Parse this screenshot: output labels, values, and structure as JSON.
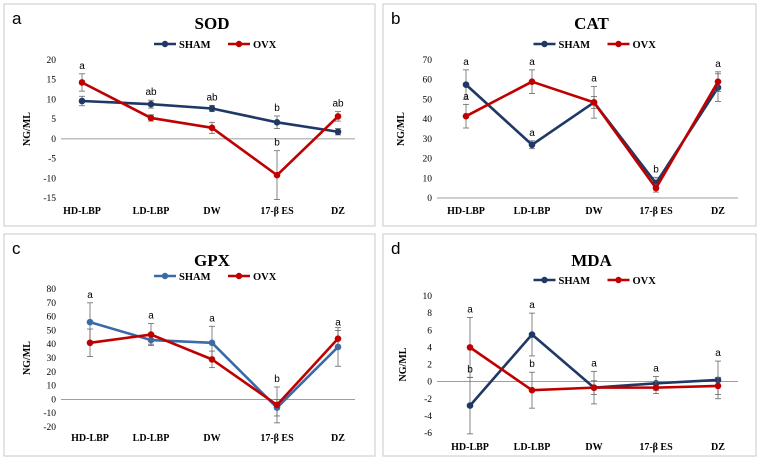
{
  "colors": {
    "series_a": "#1f3864",
    "series_b": "#c00000",
    "series_a_gpx": "#3a6aa8",
    "frame": "#c8c8c8",
    "axis": "#7f7f7f"
  },
  "chart_data": [
    {
      "type": "line",
      "panel": "a",
      "title": "SOD",
      "ylabel": "NG/ML",
      "xlabel": "",
      "categories": [
        "HD-LBP",
        "LD-LBP",
        "DW",
        "17-β ES",
        "DZ"
      ],
      "ylim": [
        -15,
        20
      ],
      "yticks": [
        -15,
        -10,
        -5,
        0,
        5,
        10,
        15,
        20
      ],
      "legend": "top-center",
      "series": [
        {
          "name": "SHAM",
          "values": [
            9.6,
            8.8,
            7.7,
            4.2,
            1.8
          ],
          "errors": [
            1.2,
            1.0,
            0.8,
            1.6,
            0.8
          ]
        },
        {
          "name": "OVX",
          "values": [
            14.3,
            5.3,
            2.8,
            -9.2,
            5.7
          ],
          "errors": [
            2.2,
            0.8,
            1.4,
            6.2,
            1.2
          ]
        }
      ],
      "annotations": [
        {
          "category": "HD-LBP",
          "label": "a",
          "series": "OVX"
        },
        {
          "category": "LD-LBP",
          "label": "ab",
          "series": "SHAM"
        },
        {
          "category": "DW",
          "label": "ab",
          "series": "SHAM"
        },
        {
          "category": "17-β ES",
          "label": "b",
          "series": "SHAM"
        },
        {
          "category": "17-β ES",
          "label": "b",
          "series": "OVX"
        },
        {
          "category": "DZ",
          "label": "ab",
          "series": "OVX"
        }
      ]
    },
    {
      "type": "line",
      "panel": "b",
      "title": "CAT",
      "ylabel": "NG/ML",
      "xlabel": "",
      "categories": [
        "HD-LBP",
        "LD-LBP",
        "DW",
        "17-β ES",
        "DZ"
      ],
      "ylim": [
        0,
        70
      ],
      "yticks": [
        0,
        10,
        20,
        30,
        40,
        50,
        60,
        70
      ],
      "legend": "top-center",
      "series": [
        {
          "name": "SHAM",
          "values": [
            57.5,
            27,
            48.5,
            7.5,
            56
          ],
          "errors": [
            7.5,
            2,
            8,
            3,
            7
          ]
        },
        {
          "name": "OVX",
          "values": [
            41.5,
            59,
            48.5,
            5,
            59
          ],
          "errors": [
            6,
            6,
            3,
            2,
            5
          ]
        }
      ],
      "annotations": [
        {
          "category": "HD-LBP",
          "label": "a",
          "series": "SHAM"
        },
        {
          "category": "HD-LBP",
          "label": "a",
          "series": "OVX"
        },
        {
          "category": "LD-LBP",
          "label": "a",
          "series": "OVX"
        },
        {
          "category": "LD-LBP",
          "label": "a",
          "series": "SHAM"
        },
        {
          "category": "DW",
          "label": "a",
          "series": "SHAM"
        },
        {
          "category": "17-β ES",
          "label": "b",
          "series": "SHAM"
        },
        {
          "category": "DZ",
          "label": "a",
          "series": "OVX"
        }
      ]
    },
    {
      "type": "line",
      "panel": "c",
      "title": "GPX",
      "ylabel": "NG/ML",
      "xlabel": "",
      "categories": [
        "HD-LBP",
        "LD-LBP",
        "DW",
        "17-β ES",
        "DZ"
      ],
      "ylim": [
        -20,
        80
      ],
      "yticks": [
        -20,
        -10,
        0,
        10,
        20,
        30,
        40,
        50,
        60,
        70,
        80
      ],
      "legend": "top-center",
      "series": [
        {
          "name": "SHAM",
          "values": [
            56,
            43,
            41,
            -6,
            38
          ],
          "errors": [
            14,
            3,
            12,
            6,
            14
          ]
        },
        {
          "name": "OVX",
          "values": [
            41,
            47,
            29,
            -4,
            44
          ],
          "errors": [
            10,
            8,
            6,
            13,
            6
          ]
        }
      ],
      "annotations": [
        {
          "category": "HD-LBP",
          "label": "a",
          "series": "SHAM"
        },
        {
          "category": "LD-LBP",
          "label": "a",
          "series": "OVX"
        },
        {
          "category": "DW",
          "label": "a",
          "series": "SHAM"
        },
        {
          "category": "17-β ES",
          "label": "b",
          "series": "OVX"
        },
        {
          "category": "DZ",
          "label": "a",
          "series": "OVX"
        }
      ]
    },
    {
      "type": "line",
      "panel": "d",
      "title": "MDA",
      "ylabel": "NG/ML",
      "xlabel": "",
      "categories": [
        "HD-LBP",
        "LD-LBP",
        "DW",
        "17-β ES",
        "DZ"
      ],
      "ylim": [
        -6,
        10
      ],
      "yticks": [
        -6,
        -4,
        -2,
        0,
        2,
        4,
        6,
        8,
        10
      ],
      "legend": "top-center",
      "series": [
        {
          "name": "SHAM",
          "values": [
            -2.8,
            5.5,
            -0.7,
            -0.2,
            0.2
          ],
          "errors": [
            3.3,
            2.5,
            1.9,
            0.8,
            2.2
          ]
        },
        {
          "name": "OVX",
          "values": [
            4,
            -1,
            -0.7,
            -0.7,
            -0.5
          ],
          "errors": [
            3.5,
            2.1,
            0.8,
            0.7,
            1.0
          ]
        }
      ],
      "annotations": [
        {
          "category": "HD-LBP",
          "label": "a",
          "series": "OVX"
        },
        {
          "category": "HD-LBP",
          "label": "b",
          "series": "SHAM"
        },
        {
          "category": "LD-LBP",
          "label": "a",
          "series": "SHAM"
        },
        {
          "category": "LD-LBP",
          "label": "b",
          "series": "OVX"
        },
        {
          "category": "DW",
          "label": "a",
          "series": "SHAM"
        },
        {
          "category": "17-β ES",
          "label": "a",
          "series": "SHAM"
        },
        {
          "category": "DZ",
          "label": "a",
          "series": "SHAM"
        }
      ]
    }
  ]
}
